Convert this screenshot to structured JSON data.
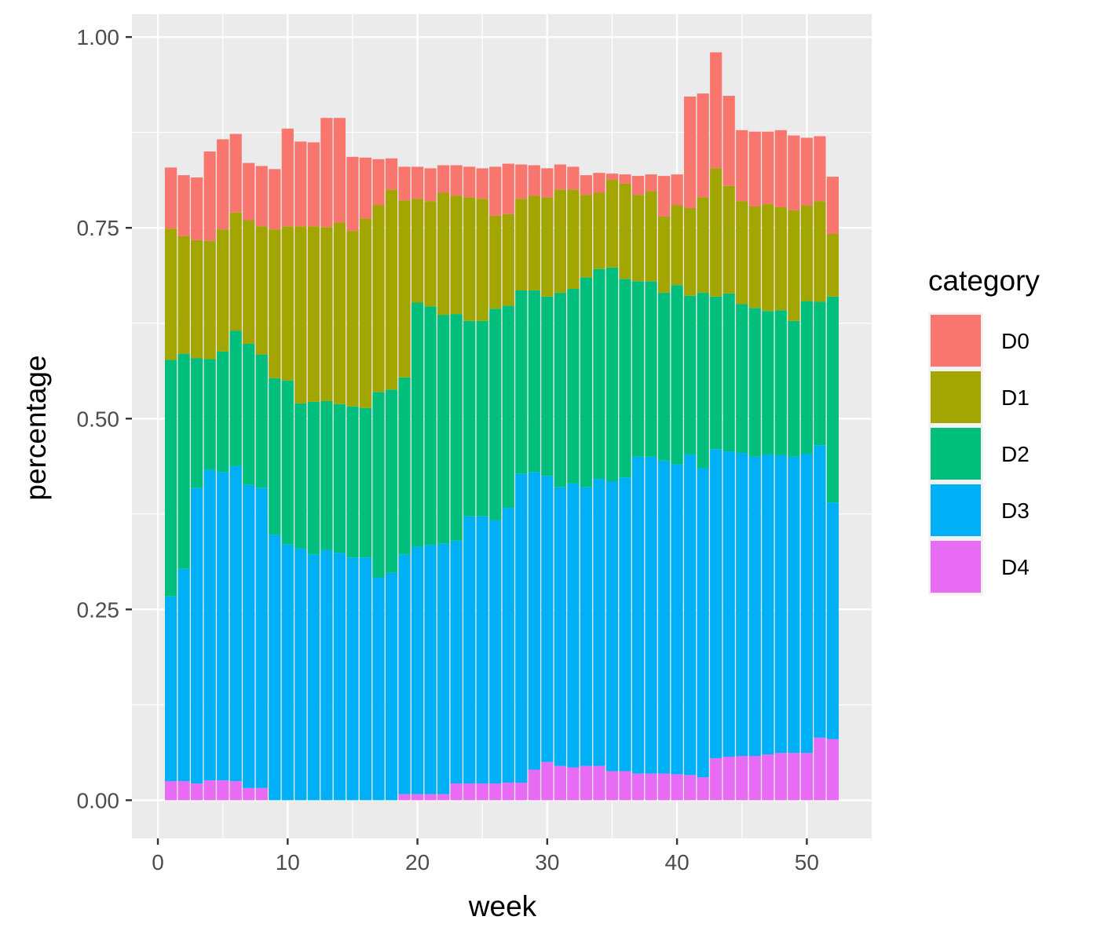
{
  "chart_data": {
    "type": "bar",
    "stacked": true,
    "xlabel": "week",
    "ylabel": "percentage",
    "xlim": [
      -2,
      55
    ],
    "ylim": [
      -0.05,
      1.03
    ],
    "x_ticks": [
      0,
      10,
      20,
      30,
      40,
      50
    ],
    "y_ticks": [
      0,
      0.25,
      0.5,
      0.75,
      1.0
    ],
    "y_tick_labels": [
      "0.00",
      "0.25",
      "0.50",
      "0.75",
      "1.00"
    ],
    "grid": true,
    "legend": {
      "title": "category",
      "position": "right"
    },
    "x": [
      1,
      2,
      3,
      4,
      5,
      6,
      7,
      8,
      9,
      10,
      11,
      12,
      13,
      14,
      15,
      16,
      17,
      18,
      19,
      20,
      21,
      22,
      23,
      24,
      25,
      26,
      27,
      28,
      29,
      30,
      31,
      32,
      33,
      34,
      35,
      36,
      37,
      38,
      39,
      40,
      41,
      42,
      43,
      44,
      45,
      46,
      47,
      48,
      49,
      50,
      51,
      52
    ],
    "series": [
      {
        "name": "D4",
        "color": "#E76BF3",
        "values": [
          0.025,
          0.025,
          0.022,
          0.026,
          0.026,
          0.025,
          0.016,
          0.016,
          0,
          0,
          0,
          0,
          0,
          0,
          0,
          0,
          0,
          0,
          0.008,
          0.008,
          0.008,
          0.008,
          0.022,
          0.022,
          0.022,
          0.022,
          0.023,
          0.023,
          0.04,
          0.05,
          0.045,
          0.043,
          0.045,
          0.045,
          0.038,
          0.038,
          0.035,
          0.035,
          0.035,
          0.034,
          0.033,
          0.03,
          0.055,
          0.057,
          0.058,
          0.058,
          0.06,
          0.062,
          0.062,
          0.062,
          0.082,
          0.08
        ]
      },
      {
        "name": "D3",
        "color": "#00B0F6",
        "values": [
          0.242,
          0.278,
          0.387,
          0.407,
          0.404,
          0.413,
          0.397,
          0.393,
          0.348,
          0.335,
          0.33,
          0.322,
          0.328,
          0.324,
          0.318,
          0.318,
          0.292,
          0.298,
          0.314,
          0.324,
          0.326,
          0.328,
          0.318,
          0.35,
          0.35,
          0.345,
          0.36,
          0.405,
          0.39,
          0.375,
          0.365,
          0.372,
          0.365,
          0.376,
          0.38,
          0.385,
          0.415,
          0.415,
          0.41,
          0.406,
          0.42,
          0.405,
          0.405,
          0.4,
          0.397,
          0.392,
          0.393,
          0.39,
          0.388,
          0.392,
          0.383,
          0.31
        ]
      },
      {
        "name": "D2",
        "color": "#00BF7D",
        "values": [
          0.31,
          0.282,
          0.17,
          0.145,
          0.158,
          0.177,
          0.185,
          0.175,
          0.205,
          0.215,
          0.19,
          0.2,
          0.195,
          0.195,
          0.198,
          0.196,
          0.243,
          0.24,
          0.232,
          0.32,
          0.313,
          0.3,
          0.297,
          0.256,
          0.256,
          0.277,
          0.265,
          0.24,
          0.238,
          0.235,
          0.255,
          0.255,
          0.275,
          0.275,
          0.28,
          0.26,
          0.23,
          0.23,
          0.22,
          0.235,
          0.208,
          0.23,
          0.2,
          0.207,
          0.195,
          0.195,
          0.188,
          0.19,
          0.178,
          0.2,
          0.188,
          0.27
        ]
      },
      {
        "name": "D1",
        "color": "#A3A500",
        "values": [
          0.172,
          0.154,
          0.155,
          0.155,
          0.16,
          0.155,
          0.162,
          0.168,
          0.195,
          0.202,
          0.232,
          0.23,
          0.228,
          0.238,
          0.23,
          0.248,
          0.245,
          0.262,
          0.232,
          0.136,
          0.138,
          0.16,
          0.155,
          0.162,
          0.16,
          0.122,
          0.12,
          0.12,
          0.124,
          0.13,
          0.135,
          0.13,
          0.108,
          0.1,
          0.115,
          0.125,
          0.113,
          0.118,
          0.1,
          0.105,
          0.115,
          0.125,
          0.168,
          0.141,
          0.135,
          0.133,
          0.14,
          0.135,
          0.145,
          0.125,
          0.132,
          0.082
        ]
      },
      {
        "name": "D0",
        "color": "#F8766D",
        "values": [
          0.08,
          0.08,
          0.082,
          0.117,
          0.118,
          0.103,
          0.075,
          0.079,
          0.079,
          0.128,
          0.111,
          0.11,
          0.143,
          0.137,
          0.097,
          0.08,
          0.06,
          0.041,
          0.044,
          0.042,
          0.043,
          0.036,
          0.04,
          0.04,
          0.04,
          0.064,
          0.066,
          0.045,
          0.04,
          0.038,
          0.033,
          0.03,
          0.026,
          0.026,
          0.008,
          0.012,
          0.025,
          0.022,
          0.053,
          0.04,
          0.146,
          0.136,
          0.152,
          0.118,
          0.093,
          0.098,
          0.095,
          0.101,
          0.098,
          0.089,
          0.085,
          0.075
        ]
      }
    ]
  }
}
